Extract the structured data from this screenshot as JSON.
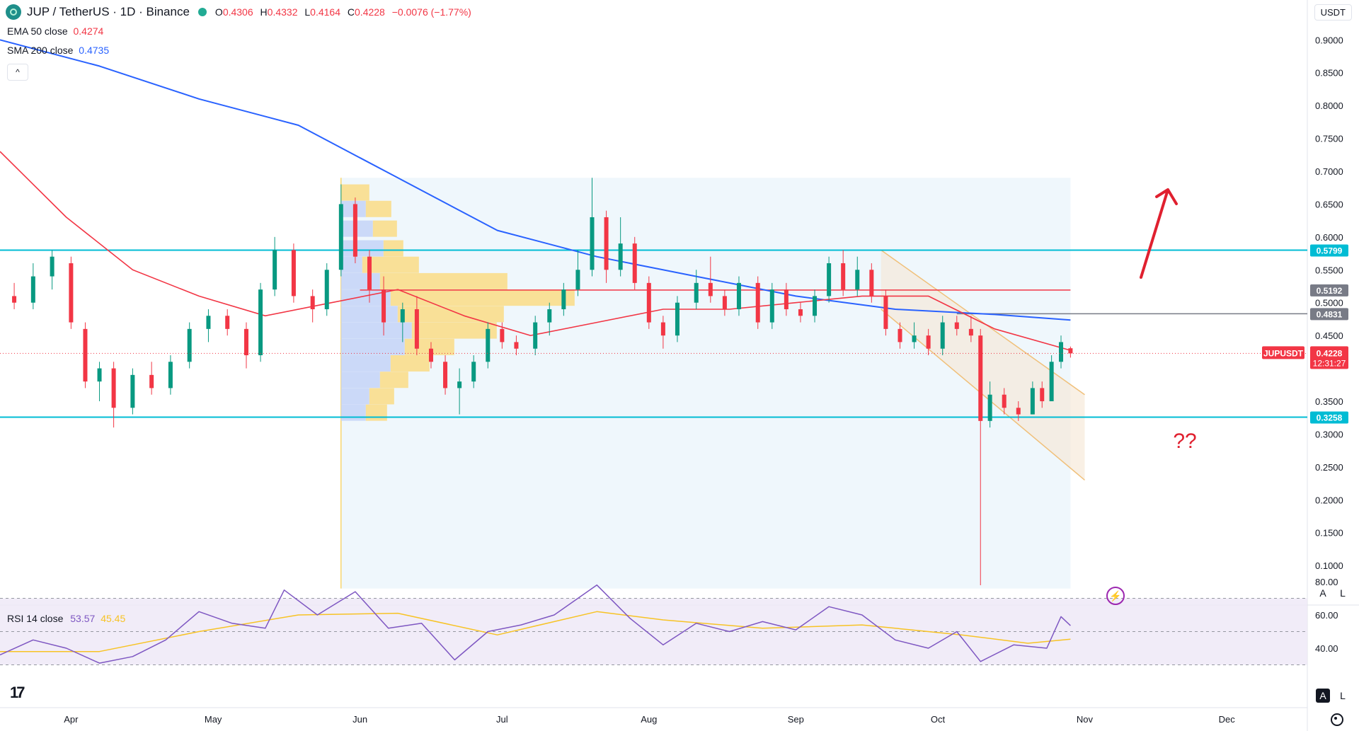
{
  "header": {
    "symbol": "JUP / TetherUS · 1D · Binance",
    "open_label": "O",
    "open": "0.4306",
    "high_label": "H",
    "high": "0.4332",
    "low_label": "L",
    "low": "0.4164",
    "close_label": "C",
    "close": "0.4228",
    "change": "−0.0076 (−1.77%)"
  },
  "indicators": {
    "ema_label": "EMA 50 close",
    "ema_value": "0.4274",
    "sma_label": "SMA 200 close",
    "sma_value": "0.4735",
    "rsi_label": "RSI 14 close",
    "rsi_value": "53.57",
    "rsi_ma_value": "45.45",
    "collapse_icon": "chevron-up-icon"
  },
  "price_axis": {
    "unit": "USDT",
    "ticks": [
      "0.9000",
      "0.8500",
      "0.8000",
      "0.7500",
      "0.7000",
      "0.6500",
      "0.6000",
      "0.5500",
      "0.5000",
      "0.4500",
      "0.3500",
      "0.3000",
      "0.2500",
      "0.2000",
      "0.1500",
      "0.1000"
    ],
    "tick_values": [
      0.9,
      0.85,
      0.8,
      0.75,
      0.7,
      0.65,
      0.6,
      0.55,
      0.5,
      0.45,
      0.35,
      0.3,
      0.25,
      0.2,
      0.15,
      0.1
    ],
    "current_symbol": "JUPUSDT",
    "current_price": "0.4228",
    "countdown": "12:31:27"
  },
  "rsi_axis": {
    "ticks": [
      "80.00",
      "60.00",
      "40.00"
    ],
    "tick_values": [
      80,
      60,
      40
    ]
  },
  "time_axis": {
    "labels": [
      "Apr",
      "May",
      "Jun",
      "Jul",
      "Aug",
      "Sep",
      "Oct",
      "Nov",
      "Dec"
    ]
  },
  "levels": [
    {
      "label": "0.5799",
      "value": 0.5799,
      "color": "#00bcd4"
    },
    {
      "label": "0.3258",
      "value": 0.3258,
      "color": "#00bcd4"
    },
    {
      "label": "0.5192",
      "value": 0.5192,
      "color": "#f23645",
      "tag_color": "#787b86"
    },
    {
      "label": "0.4831",
      "value": 0.4831,
      "color": "#787b86"
    }
  ],
  "annotation": {
    "question": "??"
  },
  "controls": {
    "auto": "A",
    "log": "L"
  },
  "colors": {
    "up": "#089981",
    "down": "#f23645",
    "ema": "#f23645",
    "sma": "#2962ff",
    "rsi": "#7e57c2",
    "rsi_ma": "#f7c325",
    "cyan": "#00bcd4"
  },
  "chart_data": {
    "type": "candlestick",
    "title": "JUP / TetherUS · 1D · Binance",
    "x_range": [
      "Mar 17",
      "Dec 18"
    ],
    "ylim": [
      0.06,
      0.91
    ],
    "ohlc_last": {
      "open": 0.4306,
      "high": 0.4332,
      "low": 0.4164,
      "close": 0.4228
    },
    "candles": [
      {
        "d": "Mar 20",
        "o": 0.51,
        "h": 0.53,
        "l": 0.49,
        "c": 0.5
      },
      {
        "d": "Mar 24",
        "o": 0.5,
        "h": 0.56,
        "l": 0.49,
        "c": 0.54
      },
      {
        "d": "Mar 28",
        "o": 0.54,
        "h": 0.58,
        "l": 0.52,
        "c": 0.57
      },
      {
        "d": "Apr 1",
        "o": 0.56,
        "h": 0.57,
        "l": 0.46,
        "c": 0.47
      },
      {
        "d": "Apr 4",
        "o": 0.46,
        "h": 0.47,
        "l": 0.37,
        "c": 0.38
      },
      {
        "d": "Apr 7",
        "o": 0.38,
        "h": 0.41,
        "l": 0.35,
        "c": 0.4
      },
      {
        "d": "Apr 10",
        "o": 0.4,
        "h": 0.41,
        "l": 0.31,
        "c": 0.34
      },
      {
        "d": "Apr 14",
        "o": 0.34,
        "h": 0.4,
        "l": 0.33,
        "c": 0.39
      },
      {
        "d": "Apr 18",
        "o": 0.39,
        "h": 0.41,
        "l": 0.36,
        "c": 0.37
      },
      {
        "d": "Apr 22",
        "o": 0.37,
        "h": 0.42,
        "l": 0.36,
        "c": 0.41
      },
      {
        "d": "Apr 26",
        "o": 0.41,
        "h": 0.47,
        "l": 0.4,
        "c": 0.46
      },
      {
        "d": "Apr 30",
        "o": 0.46,
        "h": 0.49,
        "l": 0.44,
        "c": 0.48
      },
      {
        "d": "May 4",
        "o": 0.48,
        "h": 0.49,
        "l": 0.45,
        "c": 0.46
      },
      {
        "d": "May 8",
        "o": 0.46,
        "h": 0.47,
        "l": 0.4,
        "c": 0.42
      },
      {
        "d": "May 11",
        "o": 0.42,
        "h": 0.53,
        "l": 0.41,
        "c": 0.52
      },
      {
        "d": "May 14",
        "o": 0.52,
        "h": 0.6,
        "l": 0.51,
        "c": 0.58
      },
      {
        "d": "May 18",
        "o": 0.58,
        "h": 0.59,
        "l": 0.5,
        "c": 0.51
      },
      {
        "d": "May 22",
        "o": 0.51,
        "h": 0.52,
        "l": 0.47,
        "c": 0.49
      },
      {
        "d": "May 25",
        "o": 0.49,
        "h": 0.56,
        "l": 0.48,
        "c": 0.55
      },
      {
        "d": "May 28",
        "o": 0.55,
        "h": 0.68,
        "l": 0.54,
        "c": 0.65
      },
      {
        "d": "May 31",
        "o": 0.65,
        "h": 0.66,
        "l": 0.56,
        "c": 0.57
      },
      {
        "d": "Jun 3",
        "o": 0.57,
        "h": 0.58,
        "l": 0.5,
        "c": 0.52
      },
      {
        "d": "Jun 6",
        "o": 0.52,
        "h": 0.54,
        "l": 0.45,
        "c": 0.47
      },
      {
        "d": "Jun 10",
        "o": 0.47,
        "h": 0.5,
        "l": 0.44,
        "c": 0.49
      },
      {
        "d": "Jun 13",
        "o": 0.49,
        "h": 0.51,
        "l": 0.42,
        "c": 0.43
      },
      {
        "d": "Jun 16",
        "o": 0.43,
        "h": 0.44,
        "l": 0.4,
        "c": 0.41
      },
      {
        "d": "Jun 19",
        "o": 0.41,
        "h": 0.42,
        "l": 0.36,
        "c": 0.37
      },
      {
        "d": "Jun 22",
        "o": 0.37,
        "h": 0.4,
        "l": 0.33,
        "c": 0.38
      },
      {
        "d": "Jun 25",
        "o": 0.38,
        "h": 0.42,
        "l": 0.37,
        "c": 0.41
      },
      {
        "d": "Jun 28",
        "o": 0.41,
        "h": 0.47,
        "l": 0.4,
        "c": 0.46
      },
      {
        "d": "Jul 1",
        "o": 0.46,
        "h": 0.47,
        "l": 0.43,
        "c": 0.44
      },
      {
        "d": "Jul 4",
        "o": 0.44,
        "h": 0.45,
        "l": 0.42,
        "c": 0.43
      },
      {
        "d": "Jul 8",
        "o": 0.43,
        "h": 0.48,
        "l": 0.42,
        "c": 0.47
      },
      {
        "d": "Jul 11",
        "o": 0.47,
        "h": 0.5,
        "l": 0.45,
        "c": 0.49
      },
      {
        "d": "Jul 14",
        "o": 0.49,
        "h": 0.53,
        "l": 0.48,
        "c": 0.52
      },
      {
        "d": "Jul 17",
        "o": 0.52,
        "h": 0.58,
        "l": 0.51,
        "c": 0.55
      },
      {
        "d": "Jul 20",
        "o": 0.55,
        "h": 0.69,
        "l": 0.54,
        "c": 0.63
      },
      {
        "d": "Jul 23",
        "o": 0.63,
        "h": 0.64,
        "l": 0.53,
        "c": 0.55
      },
      {
        "d": "Jul 26",
        "o": 0.55,
        "h": 0.63,
        "l": 0.54,
        "c": 0.59
      },
      {
        "d": "Jul 29",
        "o": 0.59,
        "h": 0.6,
        "l": 0.52,
        "c": 0.53
      },
      {
        "d": "Aug 1",
        "o": 0.53,
        "h": 0.54,
        "l": 0.46,
        "c": 0.47
      },
      {
        "d": "Aug 4",
        "o": 0.47,
        "h": 0.48,
        "l": 0.43,
        "c": 0.45
      },
      {
        "d": "Aug 7",
        "o": 0.45,
        "h": 0.51,
        "l": 0.44,
        "c": 0.5
      },
      {
        "d": "Aug 11",
        "o": 0.5,
        "h": 0.55,
        "l": 0.49,
        "c": 0.53
      },
      {
        "d": "Aug 14",
        "o": 0.53,
        "h": 0.57,
        "l": 0.5,
        "c": 0.51
      },
      {
        "d": "Aug 17",
        "o": 0.51,
        "h": 0.52,
        "l": 0.48,
        "c": 0.49
      },
      {
        "d": "Aug 20",
        "o": 0.49,
        "h": 0.54,
        "l": 0.48,
        "c": 0.53
      },
      {
        "d": "Aug 24",
        "o": 0.53,
        "h": 0.54,
        "l": 0.46,
        "c": 0.47
      },
      {
        "d": "Aug 27",
        "o": 0.47,
        "h": 0.53,
        "l": 0.46,
        "c": 0.52
      },
      {
        "d": "Aug 30",
        "o": 0.52,
        "h": 0.53,
        "l": 0.48,
        "c": 0.49
      },
      {
        "d": "Sep 2",
        "o": 0.49,
        "h": 0.5,
        "l": 0.47,
        "c": 0.48
      },
      {
        "d": "Sep 5",
        "o": 0.48,
        "h": 0.52,
        "l": 0.47,
        "c": 0.51
      },
      {
        "d": "Sep 8",
        "o": 0.51,
        "h": 0.57,
        "l": 0.5,
        "c": 0.56
      },
      {
        "d": "Sep 11",
        "o": 0.56,
        "h": 0.58,
        "l": 0.51,
        "c": 0.52
      },
      {
        "d": "Sep 14",
        "o": 0.52,
        "h": 0.57,
        "l": 0.51,
        "c": 0.55
      },
      {
        "d": "Sep 17",
        "o": 0.55,
        "h": 0.56,
        "l": 0.5,
        "c": 0.51
      },
      {
        "d": "Sep 20",
        "o": 0.51,
        "h": 0.52,
        "l": 0.45,
        "c": 0.46
      },
      {
        "d": "Sep 23",
        "o": 0.46,
        "h": 0.47,
        "l": 0.43,
        "c": 0.44
      },
      {
        "d": "Sep 26",
        "o": 0.44,
        "h": 0.47,
        "l": 0.43,
        "c": 0.45
      },
      {
        "d": "Sep 29",
        "o": 0.45,
        "h": 0.46,
        "l": 0.42,
        "c": 0.43
      },
      {
        "d": "Oct 2",
        "o": 0.43,
        "h": 0.48,
        "l": 0.42,
        "c": 0.47
      },
      {
        "d": "Oct 5",
        "o": 0.47,
        "h": 0.48,
        "l": 0.45,
        "c": 0.46
      },
      {
        "d": "Oct 8",
        "o": 0.46,
        "h": 0.48,
        "l": 0.44,
        "c": 0.45
      },
      {
        "d": "Oct 10",
        "o": 0.45,
        "h": 0.46,
        "l": 0.07,
        "c": 0.32
      },
      {
        "d": "Oct 12",
        "o": 0.32,
        "h": 0.38,
        "l": 0.31,
        "c": 0.36
      },
      {
        "d": "Oct 15",
        "o": 0.36,
        "h": 0.37,
        "l": 0.33,
        "c": 0.34
      },
      {
        "d": "Oct 18",
        "o": 0.34,
        "h": 0.35,
        "l": 0.32,
        "c": 0.33
      },
      {
        "d": "Oct 21",
        "o": 0.33,
        "h": 0.38,
        "l": 0.33,
        "c": 0.37
      },
      {
        "d": "Oct 23",
        "o": 0.37,
        "h": 0.38,
        "l": 0.34,
        "c": 0.35
      },
      {
        "d": "Oct 25",
        "o": 0.35,
        "h": 0.42,
        "l": 0.35,
        "c": 0.41
      },
      {
        "d": "Oct 27",
        "o": 0.41,
        "h": 0.45,
        "l": 0.4,
        "c": 0.44
      },
      {
        "d": "Oct 29",
        "o": 0.4306,
        "h": 0.4332,
        "l": 0.4164,
        "c": 0.4228
      }
    ],
    "series": [
      {
        "name": "EMA 50 close",
        "points": [
          [
            "Mar 17",
            0.73
          ],
          [
            "Mar 31",
            0.63
          ],
          [
            "Apr 14",
            0.55
          ],
          [
            "Apr 28",
            0.51
          ],
          [
            "May 12",
            0.48
          ],
          [
            "May 26",
            0.5
          ],
          [
            "Jun 9",
            0.52
          ],
          [
            "Jun 23",
            0.48
          ],
          [
            "Jul 7",
            0.45
          ],
          [
            "Jul 21",
            0.47
          ],
          [
            "Aug 4",
            0.49
          ],
          [
            "Aug 18",
            0.49
          ],
          [
            "Sep 1",
            0.5
          ],
          [
            "Sep 15",
            0.51
          ],
          [
            "Sep 29",
            0.51
          ],
          [
            "Oct 13",
            0.46
          ],
          [
            "Oct 29",
            0.4274
          ]
        ]
      },
      {
        "name": "SMA 200 close",
        "points": [
          [
            "Mar 17",
            0.9
          ],
          [
            "Apr 7",
            0.86
          ],
          [
            "Apr 28",
            0.81
          ],
          [
            "May 19",
            0.77
          ],
          [
            "Jun 9",
            0.69
          ],
          [
            "Jun 30",
            0.61
          ],
          [
            "Jul 21",
            0.57
          ],
          [
            "Aug 11",
            0.54
          ],
          [
            "Sep 1",
            0.51
          ],
          [
            "Sep 22",
            0.49
          ],
          [
            "Oct 13",
            0.482
          ],
          [
            "Oct 29",
            0.4735
          ]
        ]
      }
    ],
    "rsi": {
      "ylim": [
        20,
        85
      ],
      "rsi_last": 53.57,
      "ma_last": 45.45,
      "points": [
        [
          "Mar 17",
          36
        ],
        [
          "Mar 24",
          45
        ],
        [
          "Mar 31",
          40
        ],
        [
          "Apr 7",
          31
        ],
        [
          "Apr 14",
          35
        ],
        [
          "Apr 21",
          45
        ],
        [
          "Apr 28",
          62
        ],
        [
          "May 5",
          55
        ],
        [
          "May 12",
          52
        ],
        [
          "May 16",
          75
        ],
        [
          "May 23",
          60
        ],
        [
          "May 31",
          74
        ],
        [
          "Jun 7",
          52
        ],
        [
          "Jun 14",
          55
        ],
        [
          "Jun 21",
          33
        ],
        [
          "Jun 28",
          50
        ],
        [
          "Jul 5",
          54
        ],
        [
          "Jul 12",
          60
        ],
        [
          "Jul 21",
          78
        ],
        [
          "Jul 28",
          58
        ],
        [
          "Aug 4",
          42
        ],
        [
          "Aug 11",
          55
        ],
        [
          "Aug 18",
          50
        ],
        [
          "Aug 25",
          56
        ],
        [
          "Sep 1",
          51
        ],
        [
          "Sep 8",
          65
        ],
        [
          "Sep 15",
          60
        ],
        [
          "Sep 22",
          45
        ],
        [
          "Sep 29",
          40
        ],
        [
          "Oct 5",
          50
        ],
        [
          "Oct 10",
          32
        ],
        [
          "Oct 17",
          42
        ],
        [
          "Oct 24",
          40
        ],
        [
          "Oct 27",
          59
        ],
        [
          "Oct 29",
          53.57
        ]
      ],
      "ma_points": [
        [
          "Mar 17",
          38
        ],
        [
          "Apr 7",
          38
        ],
        [
          "Apr 28",
          50
        ],
        [
          "May 19",
          60
        ],
        [
          "Jun 9",
          61
        ],
        [
          "Jun 30",
          48
        ],
        [
          "Jul 21",
          62
        ],
        [
          "Aug 4",
          57
        ],
        [
          "Aug 25",
          52
        ],
        [
          "Sep 15",
          54
        ],
        [
          "Oct 6",
          48
        ],
        [
          "Oct 20",
          43
        ],
        [
          "Oct 29",
          45.45
        ]
      ]
    },
    "volume_profile": {
      "range": [
        0.3,
        0.7
      ]
    },
    "descending_channel": {
      "upper": [
        [
          "Sep 19",
          0.58
        ],
        [
          "Nov 1",
          0.36
        ]
      ],
      "lower": [
        [
          "Sep 19",
          0.49
        ],
        [
          "Nov 1",
          0.23
        ]
      ]
    }
  }
}
